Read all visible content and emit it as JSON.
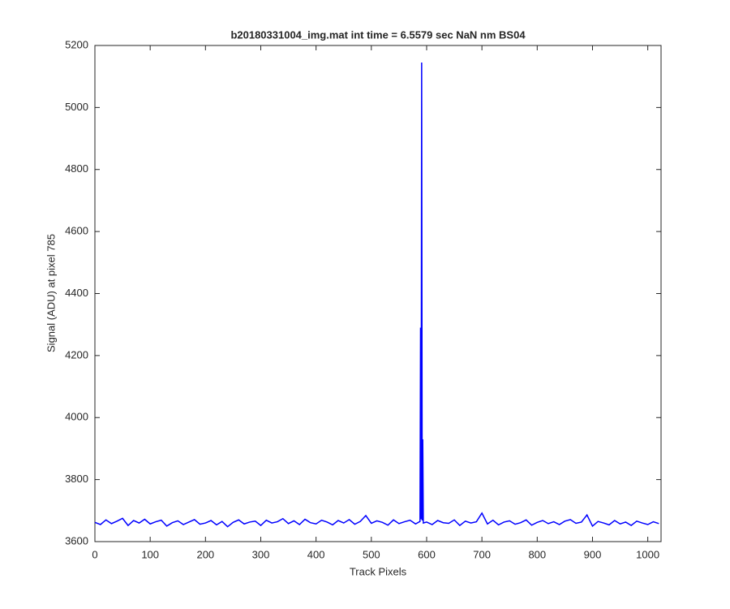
{
  "chart_data": {
    "type": "line",
    "title": "b20180331004_img.mat int time = 6.5579 sec  NaN nm BS04",
    "xlabel": "Track Pixels",
    "ylabel": "Signal (ADU) at pixel 785",
    "x": [
      0,
      10,
      20,
      30,
      40,
      50,
      60,
      70,
      80,
      90,
      100,
      110,
      120,
      130,
      140,
      150,
      160,
      170,
      180,
      190,
      200,
      210,
      220,
      230,
      240,
      250,
      260,
      270,
      280,
      290,
      300,
      310,
      320,
      330,
      340,
      350,
      360,
      370,
      380,
      390,
      400,
      410,
      420,
      430,
      440,
      450,
      460,
      470,
      480,
      490,
      500,
      510,
      520,
      530,
      540,
      550,
      560,
      570,
      580,
      588,
      589,
      590,
      591,
      592,
      593,
      594,
      600,
      610,
      620,
      630,
      640,
      650,
      660,
      670,
      680,
      690,
      700,
      710,
      720,
      730,
      740,
      750,
      760,
      770,
      780,
      790,
      800,
      810,
      820,
      830,
      840,
      850,
      860,
      870,
      880,
      890,
      900,
      910,
      920,
      930,
      940,
      950,
      960,
      970,
      980,
      990,
      1000,
      1010,
      1020
    ],
    "series": [
      {
        "name": "signal",
        "color": "#0000ff",
        "values": [
          3662,
          3655,
          3670,
          3658,
          3666,
          3675,
          3652,
          3668,
          3660,
          3672,
          3657,
          3664,
          3669,
          3650,
          3661,
          3667,
          3655,
          3663,
          3671,
          3656,
          3660,
          3668,
          3654,
          3665,
          3648,
          3662,
          3670,
          3657,
          3663,
          3666,
          3652,
          3669,
          3660,
          3664,
          3674,
          3658,
          3667,
          3655,
          3672,
          3661,
          3657,
          3669,
          3663,
          3654,
          3668,
          3660,
          3671,
          3656,
          3665,
          3684,
          3659,
          3667,
          3662,
          3653,
          3670,
          3658,
          3664,
          3669,
          3657,
          3665,
          4290,
          3672,
          5145,
          3668,
          3930,
          3660,
          3663,
          3655,
          3668,
          3661,
          3659,
          3670,
          3652,
          3666,
          3660,
          3664,
          3692,
          3657,
          3669,
          3654,
          3663,
          3667,
          3656,
          3661,
          3670,
          3653,
          3662,
          3668,
          3658,
          3664,
          3655,
          3666,
          3671,
          3659,
          3663,
          3686,
          3650,
          3665,
          3660,
          3654,
          3668,
          3657,
          3663,
          3652,
          3666,
          3660,
          3655,
          3664,
          3658
        ]
      }
    ],
    "xlim": [
      0,
      1024
    ],
    "ylim": [
      3600,
      5200
    ],
    "xticks": [
      0,
      100,
      200,
      300,
      400,
      500,
      600,
      700,
      800,
      900,
      1000
    ],
    "yticks": [
      3600,
      3800,
      4000,
      4200,
      4400,
      4600,
      4800,
      5000,
      5200
    ]
  }
}
